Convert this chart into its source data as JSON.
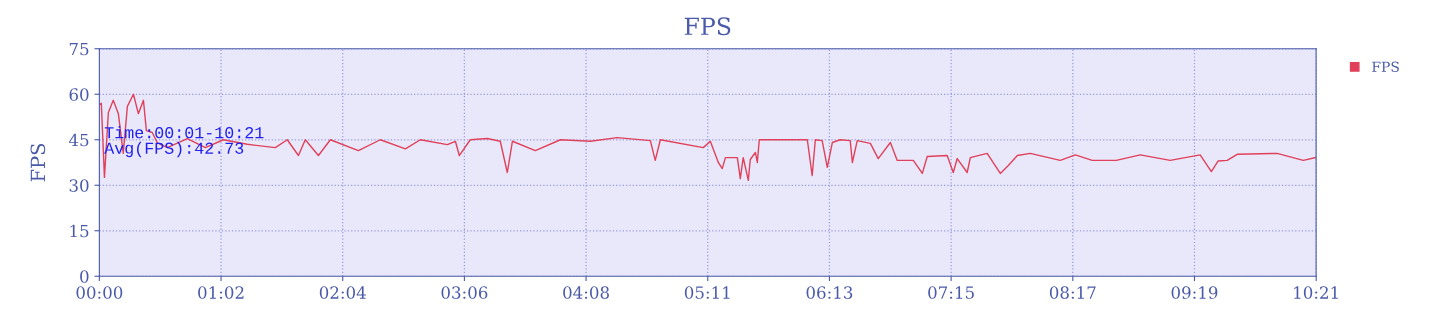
{
  "chart_data": {
    "type": "line",
    "title": "FPS",
    "ylabel": "FPS",
    "x": [
      0,
      1,
      2.6,
      4.6,
      7.1,
      9.7,
      12.2,
      14.3,
      17.4,
      19.9,
      22.5,
      24,
      27,
      29.6,
      34.7,
      44.9,
      54.1,
      63.3,
      75.5,
      89.8,
      95.9,
      101.6,
      105.1,
      111.8,
      117.9,
      132.2,
      143.4,
      156.2,
      163.8,
      177.6,
      181.7,
      183.7,
      189.3,
      198,
      204.6,
      208.2,
      210.8,
      222.5,
      235.3,
      250.6,
      264.3,
      281.2,
      283.7,
      286.3,
      308.2,
      311.8,
      315.9,
      317.9,
      319.5,
      325.6,
      327.1,
      328.6,
      331.2,
      332.2,
      334.8,
      335.8,
      336.8,
      349.1,
      361.3,
      363.8,
      365.4,
      368.9,
      371.5,
      374.1,
      378.1,
      383.2,
      384.3,
      386.8,
      393.5,
      397.5,
      403.7,
      407.2,
      415.4,
      420,
      422.5,
      432.7,
      435.8,
      437.8,
      442.9,
      444.5,
      453.1,
      459.8,
      463.9,
      468.5,
      475.1,
      490.4,
      498.1,
      506.7,
      519,
      531.2,
      546.5,
      561.8,
      567.5,
      568.5,
      571,
      575.6,
      580.7,
      601.1,
      614.4,
      620.5
    ],
    "series": [
      {
        "name": "FPS",
        "color": "#e0405a",
        "values": [
          56.6,
          57,
          32.6,
          54,
          58,
          53.6,
          40.5,
          56,
          60,
          53.6,
          58,
          48,
          47.4,
          44,
          42.4,
          45.4,
          42.4,
          45,
          43.5,
          42.4,
          45,
          39.8,
          45,
          39.8,
          45,
          41.4,
          45,
          42,
          45,
          43.4,
          44.5,
          39.8,
          45,
          45.4,
          44.5,
          34.2,
          44.5,
          41.4,
          45,
          44.5,
          45.7,
          44.7,
          38.2,
          45,
          42.4,
          44.5,
          37.5,
          35.5,
          39.1,
          39.1,
          32.2,
          39.1,
          31.6,
          38.5,
          40.8,
          37.5,
          45,
          45,
          45,
          33.2,
          45,
          44.7,
          35.9,
          44.1,
          45,
          44.7,
          37.5,
          44.7,
          43.8,
          38.8,
          44.1,
          38.2,
          38.2,
          33.9,
          39.5,
          39.8,
          34.2,
          38.8,
          34.2,
          39.1,
          40.5,
          33.9,
          36.5,
          39.8,
          40.5,
          38.2,
          40,
          38.2,
          38.2,
          40,
          38.2,
          40,
          34.5,
          35.5,
          38,
          38.2,
          40.2,
          40.5,
          38.2,
          39.1
        ]
      }
    ],
    "xlim": [
      0,
      621
    ],
    "xticks": [
      {
        "value": 0,
        "label": "00:00"
      },
      {
        "value": 62.1,
        "label": "01:02"
      },
      {
        "value": 124.2,
        "label": "02:04"
      },
      {
        "value": 186.3,
        "label": "03:06"
      },
      {
        "value": 248.4,
        "label": "04:08"
      },
      {
        "value": 310.5,
        "label": "05:11"
      },
      {
        "value": 372.6,
        "label": "06:13"
      },
      {
        "value": 434.7,
        "label": "07:15"
      },
      {
        "value": 496.8,
        "label": "08:17"
      },
      {
        "value": 558.9,
        "label": "09:19"
      },
      {
        "value": 621,
        "label": "10:21"
      }
    ],
    "ylim": [
      0,
      75
    ],
    "yticks": [
      0,
      15,
      30,
      45,
      60,
      75
    ],
    "annotations": [
      "Time:00:01-10:21\nAvg(FPS):42.73"
    ],
    "grid": true,
    "legend": "top right",
    "marker": "none",
    "line_style": "solid"
  }
}
